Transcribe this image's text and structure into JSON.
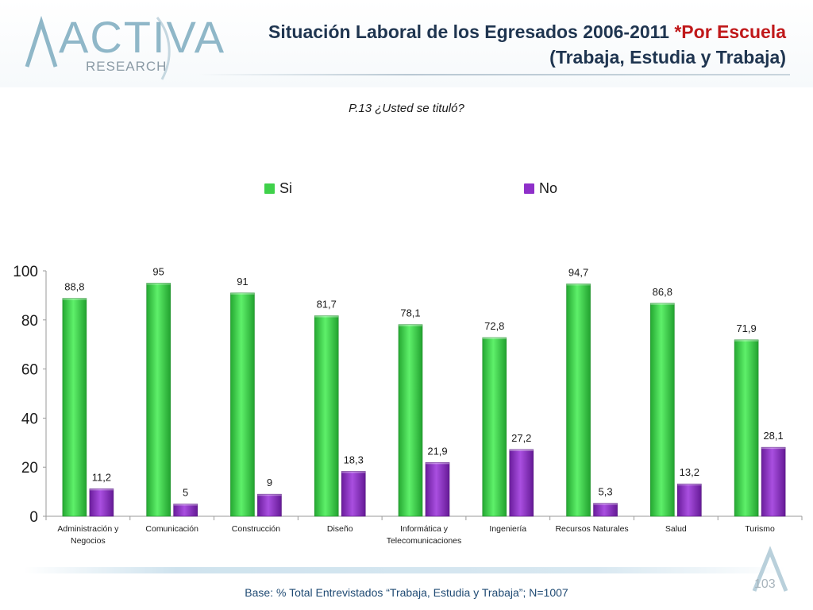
{
  "logo": {
    "word": "ACTIVA",
    "sub": "RESEARCH"
  },
  "title": {
    "main": "Situación Laboral de los Egresados 2006-2011 ",
    "accent": "*Por Escuela",
    "line2": "(Trabaja, Estudia y Trabaja)"
  },
  "question": "P.13 ¿Usted se tituló?",
  "footer": {
    "base": "Base: % Total Entrevistados “Trabaja, Estudia y Trabaja”; N=1007",
    "page": "103"
  },
  "colors": {
    "si": "#3fd14a",
    "no": "#8e2fc9",
    "title": "#1f3550",
    "accent": "#c0181a"
  },
  "chart_data": {
    "type": "bar",
    "categories": [
      [
        "Administración y",
        "Negocios"
      ],
      [
        "Comunicación"
      ],
      [
        "Construcción"
      ],
      [
        "Diseño"
      ],
      [
        "Informática y",
        "Telecomunicaciones"
      ],
      [
        "Ingeniería"
      ],
      [
        "Recursos Naturales"
      ],
      [
        "Salud"
      ],
      [
        "Turismo"
      ]
    ],
    "series": [
      {
        "name": "Si",
        "values": [
          88.8,
          95,
          91,
          81.7,
          78.1,
          72.8,
          94.7,
          86.8,
          71.9
        ],
        "labels": [
          "88,8",
          "95",
          "91",
          "81,7",
          "78,1",
          "72,8",
          "94,7",
          "86,8",
          "71,9"
        ]
      },
      {
        "name": "No",
        "values": [
          11.2,
          5,
          9,
          18.3,
          21.9,
          27.2,
          5.3,
          13.2,
          28.1
        ],
        "labels": [
          "11,2",
          "5",
          "9",
          "18,3",
          "21,9",
          "27,2",
          "5,3",
          "13,2",
          "28,1"
        ]
      }
    ],
    "ylim": [
      0,
      100
    ],
    "yticks": [
      0,
      20,
      40,
      60,
      80,
      100
    ],
    "grid": false,
    "legend_position": "top"
  }
}
